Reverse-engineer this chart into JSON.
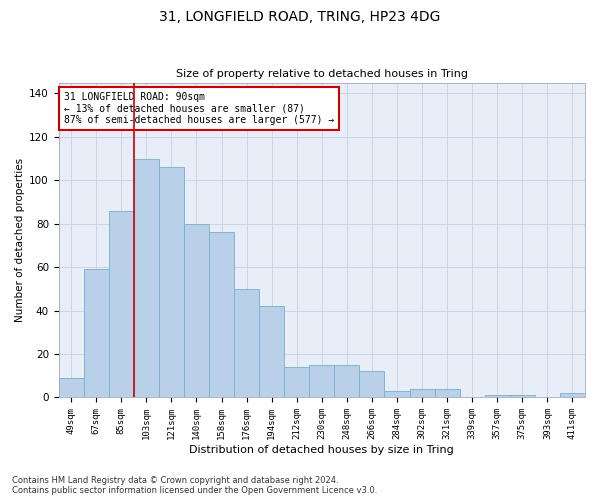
{
  "title": "31, LONGFIELD ROAD, TRING, HP23 4DG",
  "subtitle": "Size of property relative to detached houses in Tring",
  "xlabel": "Distribution of detached houses by size in Tring",
  "ylabel": "Number of detached properties",
  "categories": [
    "49sqm",
    "67sqm",
    "85sqm",
    "103sqm",
    "121sqm",
    "140sqm",
    "158sqm",
    "176sqm",
    "194sqm",
    "212sqm",
    "230sqm",
    "248sqm",
    "266sqm",
    "284sqm",
    "302sqm",
    "321sqm",
    "339sqm",
    "357sqm",
    "375sqm",
    "393sqm",
    "411sqm"
  ],
  "values": [
    9,
    59,
    86,
    110,
    106,
    80,
    76,
    50,
    42,
    14,
    15,
    15,
    12,
    3,
    4,
    4,
    0,
    1,
    1,
    0,
    2
  ],
  "bar_color": "#b8d0e8",
  "bar_edge_color": "#7aaecc",
  "vline_color": "#cc0000",
  "vline_x": 2.5,
  "annotation_title": "31 LONGFIELD ROAD: 90sqm",
  "annotation_line1": "← 13% of detached houses are smaller (87)",
  "annotation_line2": "87% of semi-detached houses are larger (577) →",
  "annotation_box_facecolor": "#ffffff",
  "annotation_box_edgecolor": "#cc0000",
  "footnote1": "Contains HM Land Registry data © Crown copyright and database right 2024.",
  "footnote2": "Contains public sector information licensed under the Open Government Licence v3.0.",
  "ylim": [
    0,
    145
  ],
  "yticks": [
    0,
    20,
    40,
    60,
    80,
    100,
    120,
    140
  ],
  "background_color": "#e8eef8",
  "grid_color": "#c8d0e0"
}
